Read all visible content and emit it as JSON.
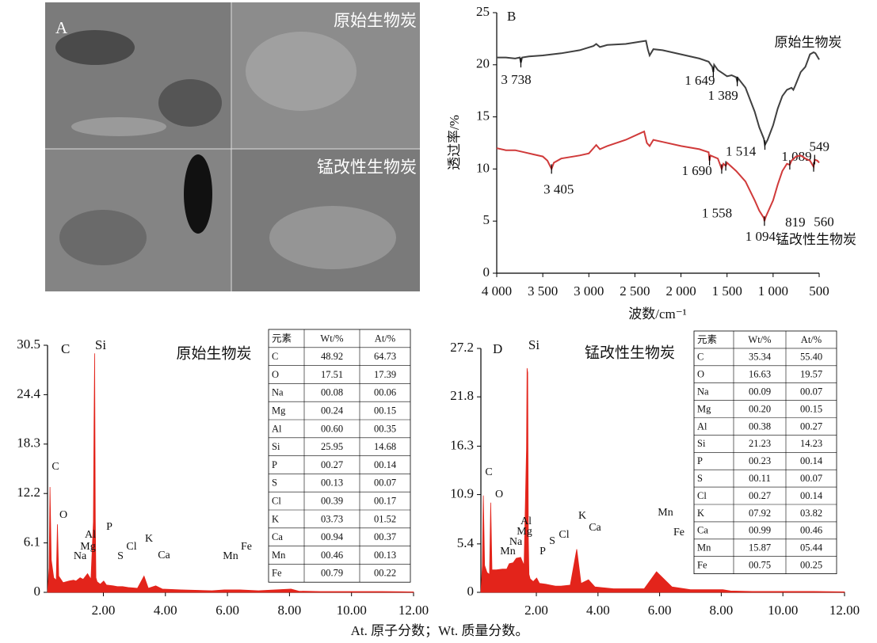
{
  "panel_a": {
    "panel_label": "A",
    "top_label": "原始生物炭",
    "bottom_label": "锰改性生物炭"
  },
  "caption": "At. 原子分数；Wt. 质量分数。",
  "chart_data": [
    {
      "type": "line",
      "panel_label": "B",
      "x_label": "波数/cm⁻¹",
      "y_label": "透过率/%",
      "xlim": [
        4000,
        500
      ],
      "ylim": [
        0,
        25
      ],
      "xticks": [
        {
          "value": 4000,
          "label": "4 000"
        },
        {
          "value": 3500,
          "label": "3 500"
        },
        {
          "value": 3000,
          "label": "3 000"
        },
        {
          "value": 2500,
          "label": "2 500"
        },
        {
          "value": 2000,
          "label": "2 000"
        },
        {
          "value": 1500,
          "label": "1 500"
        },
        {
          "value": 1000,
          "label": "1 000"
        },
        500
      ],
      "yticks": [
        0,
        5,
        10,
        15,
        20,
        25
      ],
      "series": [
        {
          "name": "原始生物炭",
          "color": "#404040",
          "x": [
            4000,
            3900,
            3800,
            3750,
            3738,
            3725,
            3650,
            3500,
            3300,
            3100,
            2950,
            2920,
            2880,
            2800,
            2600,
            2450,
            2380,
            2360,
            2340,
            2300,
            2200,
            2000,
            1800,
            1700,
            1660,
            1649,
            1640,
            1600,
            1550,
            1500,
            1450,
            1400,
            1389,
            1380,
            1300,
            1200,
            1150,
            1100,
            1089,
            1060,
            1000,
            950,
            900,
            850,
            800,
            780,
            760,
            700,
            650,
            620,
            600,
            560,
            540,
            500
          ],
          "values": [
            20.7,
            20.7,
            20.6,
            20.7,
            20.2,
            20.7,
            20.8,
            20.9,
            21.1,
            21.4,
            21.8,
            22.0,
            21.7,
            21.9,
            22.0,
            22.2,
            22.3,
            21.5,
            20.9,
            21.5,
            21.4,
            21.0,
            20.6,
            20.3,
            19.8,
            19.3,
            20.0,
            19.5,
            19.2,
            18.9,
            19.0,
            18.8,
            18.4,
            18.7,
            17.8,
            15.5,
            14.0,
            12.9,
            12.3,
            12.8,
            14.2,
            15.8,
            17.0,
            17.6,
            17.8,
            17.6,
            18.0,
            19.3,
            19.8,
            20.5,
            21.0,
            21.2,
            21.1,
            20.5
          ],
          "peaks": [
            {
              "value": 3738,
              "label": "3 738"
            },
            {
              "value": 1649,
              "label": "1 649"
            },
            {
              "value": 1389,
              "label": "1 389"
            },
            {
              "value": 1089,
              "label": "1 089"
            }
          ]
        },
        {
          "name": "锰改性生物炭",
          "color": "#d03a3a",
          "x": [
            4000,
            3900,
            3800,
            3700,
            3600,
            3500,
            3450,
            3405,
            3380,
            3300,
            3100,
            3000,
            2950,
            2920,
            2880,
            2800,
            2600,
            2450,
            2400,
            2370,
            2340,
            2300,
            2200,
            2000,
            1800,
            1700,
            1690,
            1680,
            1600,
            1558,
            1540,
            1514,
            1500,
            1400,
            1300,
            1200,
            1150,
            1100,
            1094,
            1080,
            1000,
            950,
            900,
            850,
            819,
            800,
            750,
            700,
            650,
            600,
            560,
            549,
            520,
            500
          ],
          "values": [
            12.0,
            11.8,
            11.8,
            11.6,
            11.4,
            11.2,
            10.8,
            10.0,
            10.6,
            11.0,
            11.3,
            11.5,
            12.0,
            12.3,
            11.9,
            12.2,
            12.8,
            13.4,
            13.6,
            12.5,
            12.2,
            12.8,
            12.6,
            12.2,
            11.9,
            11.6,
            10.8,
            11.3,
            11.0,
            10.0,
            10.5,
            10.3,
            10.6,
            9.8,
            8.8,
            7.0,
            6.0,
            5.3,
            5.0,
            5.4,
            7.0,
            8.5,
            9.8,
            10.5,
            10.4,
            10.8,
            11.2,
            11.3,
            11.0,
            10.8,
            10.2,
            10.9,
            10.8,
            10.6
          ],
          "peaks": [
            {
              "value": 3405,
              "label": "3 405"
            },
            {
              "value": 1690,
              "label": "1 690"
            },
            {
              "value": 1558,
              "label": "1 558"
            },
            {
              "value": 1514,
              "label": "1 514"
            },
            {
              "value": 1094,
              "label": "1 094"
            },
            {
              "value": 819,
              "label": "819"
            },
            {
              "value": 560,
              "label": "560"
            },
            {
              "value": 549,
              "label": "549"
            }
          ]
        }
      ]
    },
    {
      "type": "spectrum",
      "panel_label": "C",
      "title": "原始生物炭",
      "color": "#e3241b",
      "xlim": [
        0.2,
        12
      ],
      "ylim": [
        0,
        30.5
      ],
      "xticks": [
        {
          "value": 2,
          "label": "2.00"
        },
        {
          "value": 4,
          "label": "4.00"
        },
        {
          "value": 6,
          "label": "6.00"
        },
        {
          "value": 8,
          "label": "8.00"
        },
        {
          "value": 10,
          "label": "10.00"
        },
        {
          "value": 12,
          "label": "12.00"
        }
      ],
      "yticks": [
        0,
        6.1,
        12.2,
        18.3,
        24.4,
        30.5
      ],
      "x": [
        0.2,
        0.25,
        0.28,
        0.32,
        0.4,
        0.48,
        0.52,
        0.56,
        0.7,
        0.9,
        1.04,
        1.12,
        1.25,
        1.35,
        1.49,
        1.6,
        1.68,
        1.7,
        1.72,
        1.74,
        1.76,
        1.8,
        1.9,
        2.01,
        2.1,
        2.31,
        2.45,
        2.62,
        2.8,
        3.1,
        3.31,
        3.45,
        3.69,
        3.9,
        4.5,
        5.5,
        5.9,
        6.4,
        7,
        8.05,
        8.3,
        9,
        10,
        11,
        12
      ],
      "values": [
        0,
        3,
        13,
        4,
        1.8,
        1.5,
        8.4,
        2,
        1.2,
        1.4,
        1.5,
        1.4,
        1.8,
        1.6,
        2.3,
        1.6,
        8.7,
        21,
        29.5,
        9,
        1.8,
        1.3,
        1.0,
        1.4,
        0.9,
        0.8,
        0.7,
        0.7,
        0.6,
        0.5,
        2.0,
        0.5,
        0.8,
        0.4,
        0.3,
        0.2,
        0.3,
        0.3,
        0.2,
        0.4,
        0.15,
        0.1,
        0.1,
        0.1,
        0.05
      ],
      "element_labels": [
        "C",
        "O",
        "Na",
        "Mg",
        "Al",
        "Si",
        "P",
        "S",
        "Cl",
        "K",
        "Ca",
        "Mn",
        "Fe"
      ],
      "table": {
        "header": [
          "元素",
          "Wt/%",
          "At/%"
        ],
        "rows": [
          [
            "C",
            "48.92",
            "64.73"
          ],
          [
            "O",
            "17.51",
            "17.39"
          ],
          [
            "Na",
            "00.08",
            "00.06"
          ],
          [
            "Mg",
            "00.24",
            "00.15"
          ],
          [
            "Al",
            "00.60",
            "00.35"
          ],
          [
            "Si",
            "25.95",
            "14.68"
          ],
          [
            "P",
            "00.27",
            "00.14"
          ],
          [
            "S",
            "00.13",
            "00.07"
          ],
          [
            "Cl",
            "00.39",
            "00.17"
          ],
          [
            "K",
            "03.73",
            "01.52"
          ],
          [
            "Ca",
            "00.94",
            "00.37"
          ],
          [
            "Mn",
            "00.46",
            "00.13"
          ],
          [
            "Fe",
            "00.79",
            "00.22"
          ]
        ]
      }
    },
    {
      "type": "spectrum",
      "panel_label": "D",
      "title": "锰改性生物炭",
      "color": "#e3241b",
      "xlim": [
        0.2,
        12
      ],
      "ylim": [
        0,
        27.2
      ],
      "xticks": [
        {
          "value": 2,
          "label": "2.00"
        },
        {
          "value": 4,
          "label": "4.00"
        },
        {
          "value": 6,
          "label": "6.00"
        },
        {
          "value": 8,
          "label": "8.00"
        },
        {
          "value": 10,
          "label": "10.00"
        },
        {
          "value": 12,
          "label": "12.00"
        }
      ],
      "yticks": [
        0,
        5.4,
        10.9,
        16.3,
        21.8,
        27.2
      ],
      "x": [
        0.2,
        0.25,
        0.28,
        0.32,
        0.4,
        0.48,
        0.52,
        0.56,
        0.7,
        0.9,
        1.04,
        1.12,
        1.25,
        1.35,
        1.49,
        1.6,
        1.68,
        1.7,
        1.72,
        1.74,
        1.76,
        1.8,
        1.9,
        2.01,
        2.1,
        2.31,
        2.45,
        2.62,
        2.8,
        3.1,
        3.31,
        3.45,
        3.69,
        3.9,
        4.5,
        5.5,
        5.9,
        6.4,
        7,
        8.05,
        8.3,
        9,
        10,
        11,
        12
      ],
      "values": [
        0,
        3,
        10.8,
        3,
        2.2,
        2,
        10,
        2.5,
        2.5,
        2.6,
        2.6,
        3.2,
        3.3,
        3.8,
        3.9,
        3,
        16,
        25,
        24.5,
        6,
        2,
        1.5,
        1.2,
        1.6,
        1,
        0.9,
        0.8,
        0.7,
        0.7,
        0.8,
        4.8,
        1,
        1.4,
        0.6,
        0.4,
        0.4,
        2.3,
        0.6,
        0.3,
        0.3,
        0.15,
        0.1,
        0.1,
        0.1,
        0.05
      ],
      "element_labels": [
        "C",
        "O",
        "Mn",
        "Na",
        "Mg",
        "Al",
        "Si",
        "P",
        "S",
        "Cl",
        "K",
        "Ca",
        "Mn",
        "Fe"
      ],
      "table": {
        "header": [
          "元素",
          "Wt/%",
          "At/%"
        ],
        "rows": [
          [
            "C",
            "35.34",
            "55.40"
          ],
          [
            "O",
            "16.63",
            "19.57"
          ],
          [
            "Na",
            "00.09",
            "00.07"
          ],
          [
            "Mg",
            "00.20",
            "00.15"
          ],
          [
            "Al",
            "00.38",
            "00.27"
          ],
          [
            "Si",
            "21.23",
            "14.23"
          ],
          [
            "P",
            "00.23",
            "00.14"
          ],
          [
            "S",
            "00.11",
            "00.07"
          ],
          [
            "Cl",
            "00.27",
            "00.14"
          ],
          [
            "K",
            "07.92",
            "03.82"
          ],
          [
            "Ca",
            "00.99",
            "00.46"
          ],
          [
            "Mn",
            "15.87",
            "05.44"
          ],
          [
            "Fe",
            "00.75",
            "00.25"
          ]
        ]
      }
    }
  ]
}
